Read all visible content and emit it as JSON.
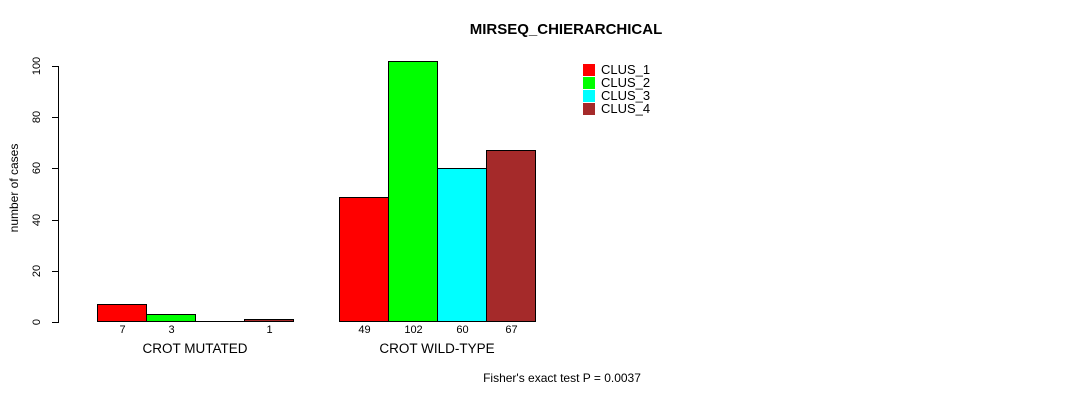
{
  "chart_data": {
    "type": "bar",
    "title": "MIRSEQ_CHIERARCHICAL",
    "ylabel": "number of cases",
    "xlabel": "",
    "ylim": [
      0,
      100
    ],
    "yticks": [
      0,
      20,
      40,
      60,
      80,
      100
    ],
    "ytick_labels": [
      "0",
      "20",
      "40",
      "60",
      "80",
      "100"
    ],
    "grid": false,
    "legend_position": "top-right",
    "categories": [
      "CROT MUTATED",
      "CROT WILD-TYPE"
    ],
    "series": [
      {
        "name": "CLUS_1",
        "color": "#FF0000",
        "values": [
          7,
          49
        ]
      },
      {
        "name": "CLUS_2",
        "color": "#00FF00",
        "values": [
          3,
          102
        ]
      },
      {
        "name": "CLUS_3",
        "color": "#00FFFF",
        "values": [
          0,
          60
        ]
      },
      {
        "name": "CLUS_4",
        "color": "#A52A2A",
        "values": [
          1,
          67
        ]
      }
    ],
    "value_label_note": "bar values printed under each bar; zero-value bars have no label",
    "annotation": "Fisher's exact test P = 0.0037"
  }
}
